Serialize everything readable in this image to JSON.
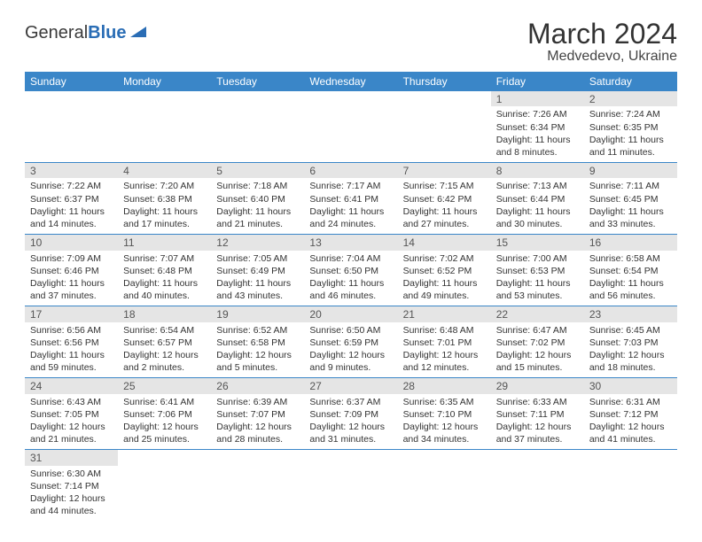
{
  "brand": {
    "part1": "General",
    "part2": "Blue"
  },
  "title": {
    "month": "March 2024",
    "location": "Medvedevo, Ukraine"
  },
  "colors": {
    "header_bg": "#3a86c8",
    "header_text": "#ffffff",
    "daynum_bg": "#e5e5e5",
    "border": "#3a86c8",
    "brand_blue": "#2a6db5"
  },
  "weekdays": [
    "Sunday",
    "Monday",
    "Tuesday",
    "Wednesday",
    "Thursday",
    "Friday",
    "Saturday"
  ],
  "weeks": [
    [
      {
        "n": "",
        "sr": "",
        "ss": "",
        "dl": ""
      },
      {
        "n": "",
        "sr": "",
        "ss": "",
        "dl": ""
      },
      {
        "n": "",
        "sr": "",
        "ss": "",
        "dl": ""
      },
      {
        "n": "",
        "sr": "",
        "ss": "",
        "dl": ""
      },
      {
        "n": "",
        "sr": "",
        "ss": "",
        "dl": ""
      },
      {
        "n": "1",
        "sr": "Sunrise: 7:26 AM",
        "ss": "Sunset: 6:34 PM",
        "dl": "Daylight: 11 hours and 8 minutes."
      },
      {
        "n": "2",
        "sr": "Sunrise: 7:24 AM",
        "ss": "Sunset: 6:35 PM",
        "dl": "Daylight: 11 hours and 11 minutes."
      }
    ],
    [
      {
        "n": "3",
        "sr": "Sunrise: 7:22 AM",
        "ss": "Sunset: 6:37 PM",
        "dl": "Daylight: 11 hours and 14 minutes."
      },
      {
        "n": "4",
        "sr": "Sunrise: 7:20 AM",
        "ss": "Sunset: 6:38 PM",
        "dl": "Daylight: 11 hours and 17 minutes."
      },
      {
        "n": "5",
        "sr": "Sunrise: 7:18 AM",
        "ss": "Sunset: 6:40 PM",
        "dl": "Daylight: 11 hours and 21 minutes."
      },
      {
        "n": "6",
        "sr": "Sunrise: 7:17 AM",
        "ss": "Sunset: 6:41 PM",
        "dl": "Daylight: 11 hours and 24 minutes."
      },
      {
        "n": "7",
        "sr": "Sunrise: 7:15 AM",
        "ss": "Sunset: 6:42 PM",
        "dl": "Daylight: 11 hours and 27 minutes."
      },
      {
        "n": "8",
        "sr": "Sunrise: 7:13 AM",
        "ss": "Sunset: 6:44 PM",
        "dl": "Daylight: 11 hours and 30 minutes."
      },
      {
        "n": "9",
        "sr": "Sunrise: 7:11 AM",
        "ss": "Sunset: 6:45 PM",
        "dl": "Daylight: 11 hours and 33 minutes."
      }
    ],
    [
      {
        "n": "10",
        "sr": "Sunrise: 7:09 AM",
        "ss": "Sunset: 6:46 PM",
        "dl": "Daylight: 11 hours and 37 minutes."
      },
      {
        "n": "11",
        "sr": "Sunrise: 7:07 AM",
        "ss": "Sunset: 6:48 PM",
        "dl": "Daylight: 11 hours and 40 minutes."
      },
      {
        "n": "12",
        "sr": "Sunrise: 7:05 AM",
        "ss": "Sunset: 6:49 PM",
        "dl": "Daylight: 11 hours and 43 minutes."
      },
      {
        "n": "13",
        "sr": "Sunrise: 7:04 AM",
        "ss": "Sunset: 6:50 PM",
        "dl": "Daylight: 11 hours and 46 minutes."
      },
      {
        "n": "14",
        "sr": "Sunrise: 7:02 AM",
        "ss": "Sunset: 6:52 PM",
        "dl": "Daylight: 11 hours and 49 minutes."
      },
      {
        "n": "15",
        "sr": "Sunrise: 7:00 AM",
        "ss": "Sunset: 6:53 PM",
        "dl": "Daylight: 11 hours and 53 minutes."
      },
      {
        "n": "16",
        "sr": "Sunrise: 6:58 AM",
        "ss": "Sunset: 6:54 PM",
        "dl": "Daylight: 11 hours and 56 minutes."
      }
    ],
    [
      {
        "n": "17",
        "sr": "Sunrise: 6:56 AM",
        "ss": "Sunset: 6:56 PM",
        "dl": "Daylight: 11 hours and 59 minutes."
      },
      {
        "n": "18",
        "sr": "Sunrise: 6:54 AM",
        "ss": "Sunset: 6:57 PM",
        "dl": "Daylight: 12 hours and 2 minutes."
      },
      {
        "n": "19",
        "sr": "Sunrise: 6:52 AM",
        "ss": "Sunset: 6:58 PM",
        "dl": "Daylight: 12 hours and 5 minutes."
      },
      {
        "n": "20",
        "sr": "Sunrise: 6:50 AM",
        "ss": "Sunset: 6:59 PM",
        "dl": "Daylight: 12 hours and 9 minutes."
      },
      {
        "n": "21",
        "sr": "Sunrise: 6:48 AM",
        "ss": "Sunset: 7:01 PM",
        "dl": "Daylight: 12 hours and 12 minutes."
      },
      {
        "n": "22",
        "sr": "Sunrise: 6:47 AM",
        "ss": "Sunset: 7:02 PM",
        "dl": "Daylight: 12 hours and 15 minutes."
      },
      {
        "n": "23",
        "sr": "Sunrise: 6:45 AM",
        "ss": "Sunset: 7:03 PM",
        "dl": "Daylight: 12 hours and 18 minutes."
      }
    ],
    [
      {
        "n": "24",
        "sr": "Sunrise: 6:43 AM",
        "ss": "Sunset: 7:05 PM",
        "dl": "Daylight: 12 hours and 21 minutes."
      },
      {
        "n": "25",
        "sr": "Sunrise: 6:41 AM",
        "ss": "Sunset: 7:06 PM",
        "dl": "Daylight: 12 hours and 25 minutes."
      },
      {
        "n": "26",
        "sr": "Sunrise: 6:39 AM",
        "ss": "Sunset: 7:07 PM",
        "dl": "Daylight: 12 hours and 28 minutes."
      },
      {
        "n": "27",
        "sr": "Sunrise: 6:37 AM",
        "ss": "Sunset: 7:09 PM",
        "dl": "Daylight: 12 hours and 31 minutes."
      },
      {
        "n": "28",
        "sr": "Sunrise: 6:35 AM",
        "ss": "Sunset: 7:10 PM",
        "dl": "Daylight: 12 hours and 34 minutes."
      },
      {
        "n": "29",
        "sr": "Sunrise: 6:33 AM",
        "ss": "Sunset: 7:11 PM",
        "dl": "Daylight: 12 hours and 37 minutes."
      },
      {
        "n": "30",
        "sr": "Sunrise: 6:31 AM",
        "ss": "Sunset: 7:12 PM",
        "dl": "Daylight: 12 hours and 41 minutes."
      }
    ],
    [
      {
        "n": "31",
        "sr": "Sunrise: 6:30 AM",
        "ss": "Sunset: 7:14 PM",
        "dl": "Daylight: 12 hours and 44 minutes."
      },
      {
        "n": "",
        "sr": "",
        "ss": "",
        "dl": ""
      },
      {
        "n": "",
        "sr": "",
        "ss": "",
        "dl": ""
      },
      {
        "n": "",
        "sr": "",
        "ss": "",
        "dl": ""
      },
      {
        "n": "",
        "sr": "",
        "ss": "",
        "dl": ""
      },
      {
        "n": "",
        "sr": "",
        "ss": "",
        "dl": ""
      },
      {
        "n": "",
        "sr": "",
        "ss": "",
        "dl": ""
      }
    ]
  ]
}
